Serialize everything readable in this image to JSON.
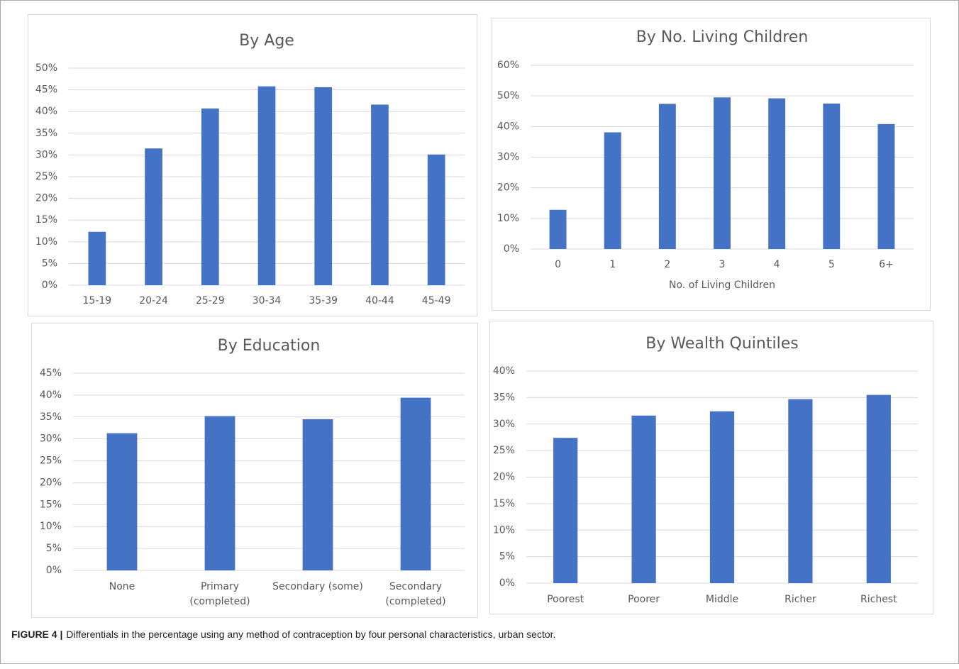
{
  "chart_data": [
    {
      "type": "bar",
      "title": "By Age",
      "color": "#4472c4",
      "grid": true,
      "categories": [
        "15-19",
        "20-24",
        "25-29",
        "30-34",
        "35-39",
        "40-44",
        "45-49"
      ],
      "values": [
        12.3,
        31.5,
        40.7,
        45.8,
        45.6,
        41.6,
        30.1
      ],
      "ylim": [
        0,
        50
      ],
      "yticks": [
        {
          "value": 0,
          "label": "0%"
        },
        {
          "value": 5,
          "label": "5%"
        },
        {
          "value": 10,
          "label": "10%"
        },
        {
          "value": 15,
          "label": "15%"
        },
        {
          "value": 20,
          "label": "20%"
        },
        {
          "value": 25,
          "label": "25%"
        },
        {
          "value": 30,
          "label": "30%"
        },
        {
          "value": 35,
          "label": "35%"
        },
        {
          "value": 40,
          "label": "40%"
        },
        {
          "value": 45,
          "label": "45%"
        },
        {
          "value": 50,
          "label": "50%"
        }
      ]
    },
    {
      "type": "bar",
      "title": "By No. Living Children",
      "x_label": "No. of Living Children",
      "color": "#4472c4",
      "grid": true,
      "categories": [
        "0",
        "1",
        "2",
        "3",
        "4",
        "5",
        "6+"
      ],
      "values": [
        12.8,
        38.1,
        47.4,
        49.5,
        49.2,
        47.5,
        40.8
      ],
      "ylim": [
        0,
        60
      ],
      "yticks": [
        {
          "value": 0,
          "label": "0%"
        },
        {
          "value": 10,
          "label": "10%"
        },
        {
          "value": 20,
          "label": "20%"
        },
        {
          "value": 30,
          "label": "30%"
        },
        {
          "value": 40,
          "label": "40%"
        },
        {
          "value": 50,
          "label": "50%"
        },
        {
          "value": 60,
          "label": "60%"
        }
      ]
    },
    {
      "type": "bar",
      "title": "By Education",
      "color": "#4472c4",
      "grid": true,
      "categories": [
        "None",
        "Primary (completed)",
        "Secondary (some)",
        "Secondary (completed)"
      ],
      "values": [
        31.3,
        35.2,
        34.5,
        39.4
      ],
      "ylim": [
        0,
        45
      ],
      "yticks": [
        {
          "value": 0,
          "label": "0%"
        },
        {
          "value": 5,
          "label": "5%"
        },
        {
          "value": 10,
          "label": "10%"
        },
        {
          "value": 15,
          "label": "15%"
        },
        {
          "value": 20,
          "label": "20%"
        },
        {
          "value": 25,
          "label": "25%"
        },
        {
          "value": 30,
          "label": "30%"
        },
        {
          "value": 35,
          "label": "35%"
        },
        {
          "value": 40,
          "label": "40%"
        },
        {
          "value": 45,
          "label": "45%"
        }
      ]
    },
    {
      "type": "bar",
      "title": "By Wealth Quintiles",
      "color": "#4472c4",
      "grid": true,
      "categories": [
        "Poorest",
        "Poorer",
        "Middle",
        "Richer",
        "Richest"
      ],
      "values": [
        27.4,
        31.6,
        32.4,
        34.7,
        35.5
      ],
      "ylim": [
        0,
        40
      ],
      "yticks": [
        {
          "value": 0,
          "label": "0%"
        },
        {
          "value": 5,
          "label": "5%"
        },
        {
          "value": 10,
          "label": "10%"
        },
        {
          "value": 15,
          "label": "15%"
        },
        {
          "value": 20,
          "label": "20%"
        },
        {
          "value": 25,
          "label": "25%"
        },
        {
          "value": 30,
          "label": "30%"
        },
        {
          "value": 35,
          "label": "35%"
        },
        {
          "value": 40,
          "label": "40%"
        }
      ]
    }
  ],
  "caption": {
    "label": "FIGURE 4 |",
    "text": "Differentials in the percentage using any method of contraception by four personal characteristics, urban sector."
  }
}
